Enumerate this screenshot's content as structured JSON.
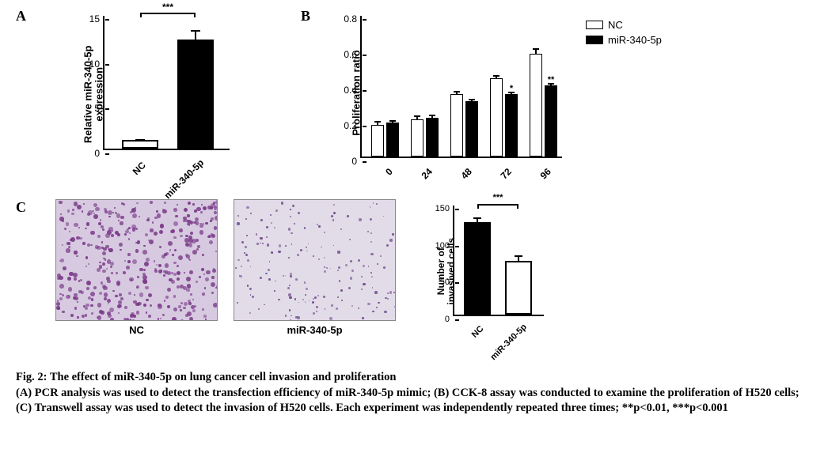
{
  "panelA": {
    "label": "A",
    "type": "bar",
    "ylabel": "Relative miR-340-5p\nexpression",
    "ylim": [
      0,
      15
    ],
    "yticks": [
      0,
      5,
      10,
      15
    ],
    "categories": [
      "NC",
      "miR-340-5p"
    ],
    "values": [
      0.95,
      12.2
    ],
    "errors": [
      0.15,
      1.0
    ],
    "bar_colors": [
      "#ffffff",
      "#000000"
    ],
    "bar_border": "#000000",
    "significance": "***",
    "axis_fontsize": 13,
    "tick_fontsize": 12
  },
  "panelB": {
    "label": "B",
    "type": "grouped_bar",
    "ylabel": "Proliferation ratio",
    "ylim": [
      0,
      0.8
    ],
    "yticks": [
      "0",
      "0.2",
      "0.4",
      "0.6",
      "0.8"
    ],
    "categories": [
      "0",
      "24",
      "48",
      "72",
      "96"
    ],
    "series": [
      {
        "name": "NC",
        "color": "#ffffff",
        "border": "#000000",
        "values": [
          0.18,
          0.21,
          0.35,
          0.44,
          0.58
        ],
        "errors": [
          0.02,
          0.02,
          0.02,
          0.02,
          0.03
        ]
      },
      {
        "name": "miR-340-5p",
        "color": "#000000",
        "border": "#000000",
        "values": [
          0.19,
          0.22,
          0.31,
          0.35,
          0.4
        ],
        "errors": [
          0.015,
          0.015,
          0.015,
          0.015,
          0.015
        ]
      }
    ],
    "sig_marks": [
      {
        "category_index": 3,
        "series_index": 1,
        "text": "*"
      },
      {
        "category_index": 4,
        "series_index": 1,
        "text": "**"
      }
    ],
    "legend": [
      "NC",
      "miR-340-5p"
    ]
  },
  "panelC": {
    "label": "C",
    "micrographs": [
      {
        "caption": "NC",
        "bg": "#d6c9e0",
        "fleck": "#7a3a88",
        "density": 420,
        "fleck_size": 4
      },
      {
        "caption": "miR-340-5p",
        "bg": "#e2dbe8",
        "fleck": "#6e4a8a",
        "density": 180,
        "fleck_size": 2.5
      }
    ],
    "chart": {
      "type": "bar",
      "ylabel": "Number of\ninvasived cells",
      "ylim": [
        0,
        150
      ],
      "yticks": [
        0,
        50,
        100,
        150
      ],
      "categories": [
        "NC",
        "miR-340-5p"
      ],
      "values": [
        125,
        73
      ],
      "errors": [
        7,
        7
      ],
      "bar_colors": [
        "#000000",
        "#ffffff"
      ],
      "bar_border": "#000000",
      "significance": "***"
    }
  },
  "caption": {
    "title": "Fig. 2: The effect of miR-340-5p on lung cancer cell invasion and proliferation",
    "body": "(A) PCR analysis was used to detect the transfection efficiency of miR-340-5p mimic; (B) CCK-8 assay was conducted to examine the proliferation of H520 cells; (C) Transwell assay was used to detect the invasion of H520 cells. Each experiment was independently repeated three times; **p<0.01, ***p<0.001"
  }
}
